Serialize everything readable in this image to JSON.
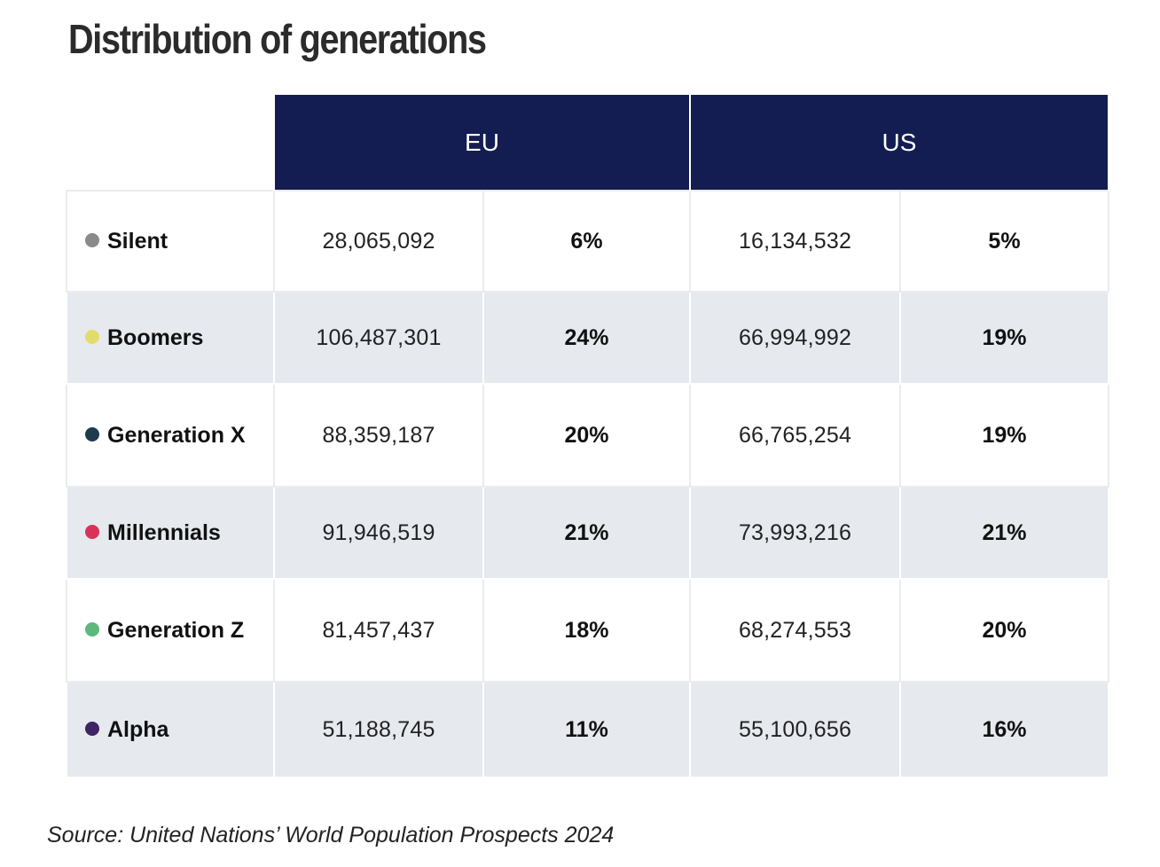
{
  "chart_data": {
    "type": "table",
    "title": "Distribution of generations",
    "columns": [
      "EU",
      "US"
    ],
    "rows": [
      {
        "label": "Silent",
        "color": "#8a8a8a",
        "eu_count": "28,065,092",
        "eu_pct": "6%",
        "us_count": "16,134,532",
        "us_pct": "5%"
      },
      {
        "label": "Boomers",
        "color": "#e4dc6a",
        "eu_count": "106,487,301",
        "eu_pct": "24%",
        "us_count": "66,994,992",
        "us_pct": "19%"
      },
      {
        "label": "Generation X",
        "color": "#1e3a4e",
        "eu_count": "88,359,187",
        "eu_pct": "20%",
        "us_count": "66,765,254",
        "us_pct": "19%"
      },
      {
        "label": "Millennials",
        "color": "#d9325a",
        "eu_count": "91,946,519",
        "eu_pct": "21%",
        "us_count": "73,993,216",
        "us_pct": "21%"
      },
      {
        "label": "Generation Z",
        "color": "#5cb87c",
        "eu_count": "81,457,437",
        "eu_pct": "18%",
        "us_count": "68,274,553",
        "us_pct": "20%"
      },
      {
        "label": "Alpha",
        "color": "#3d2563",
        "eu_count": "51,188,745",
        "eu_pct": "11%",
        "us_count": "55,100,656",
        "us_pct": "16%"
      }
    ],
    "source": "Source: United Nations’ World Population Prospects 2024"
  },
  "colors": {
    "header_bg": "#141d52",
    "row_alt_bg": "#e6e9ee"
  }
}
